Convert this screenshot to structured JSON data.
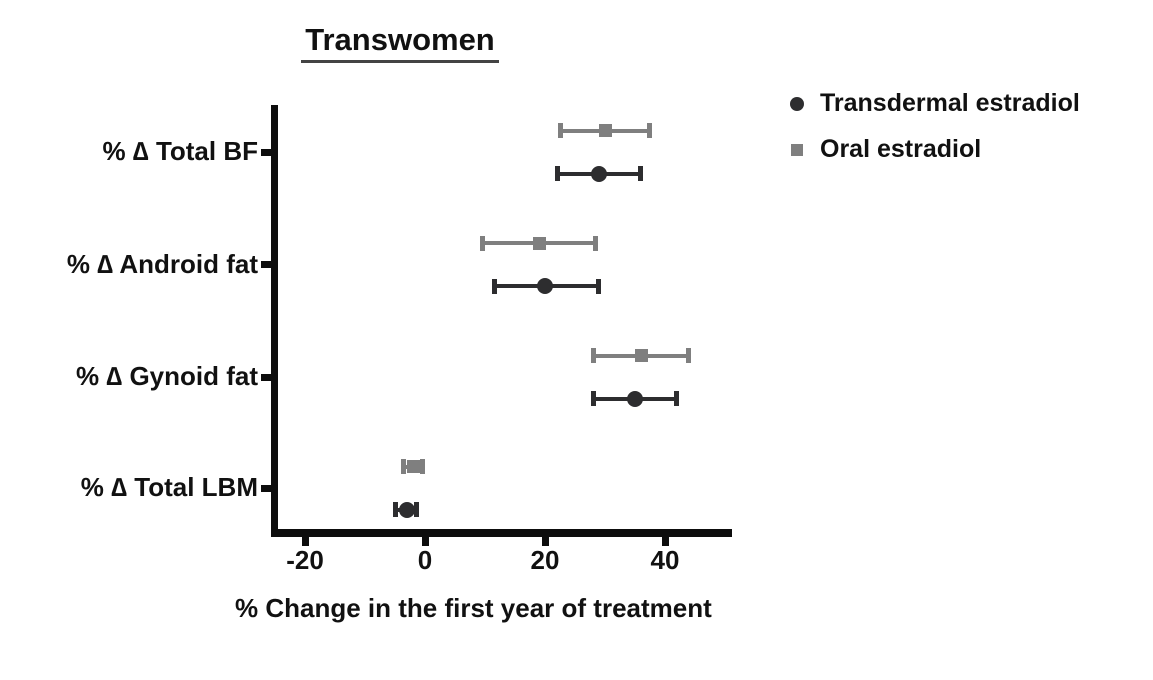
{
  "title": "Transwomen",
  "legend": {
    "items": [
      {
        "label": "Transdermal estradiol",
        "marker": "circle",
        "color": "#2d2d2f"
      },
      {
        "label": "Oral estradiol",
        "marker": "square",
        "color": "#7f7f7f"
      }
    ]
  },
  "chart_data": {
    "type": "scatter",
    "subtype": "horizontal point estimates with error bars (forest-style plot)",
    "title": "Transwomen",
    "xlabel": "% Change in the first year of treatment",
    "ylabel": "",
    "xlim": [
      -26,
      51
    ],
    "xticks": [
      -20,
      0,
      20,
      40
    ],
    "grid": false,
    "legend_position": "top-right outside plot",
    "categories": [
      "% ∆ Total BF",
      "% ∆ Android fat",
      "% ∆ Gynoid fat",
      "% ∆ Total LBM"
    ],
    "series": [
      {
        "name": "Oral estradiol",
        "marker": "square",
        "color": "#7f7f7f",
        "values": [
          30,
          19,
          36,
          -2
        ],
        "ci_low": [
          22.5,
          9.5,
          28,
          -3.7
        ],
        "ci_high": [
          37.5,
          28.5,
          44,
          -0.3
        ]
      },
      {
        "name": "Transdermal estradiol",
        "marker": "circle",
        "color": "#2d2d2f",
        "values": [
          29,
          20,
          35,
          -3
        ],
        "ci_low": [
          22,
          11.5,
          28,
          -5
        ],
        "ci_high": [
          36,
          29,
          42,
          -1.3
        ]
      }
    ],
    "colors": {
      "axis": "#0d0d0d",
      "text": "#111111"
    }
  }
}
